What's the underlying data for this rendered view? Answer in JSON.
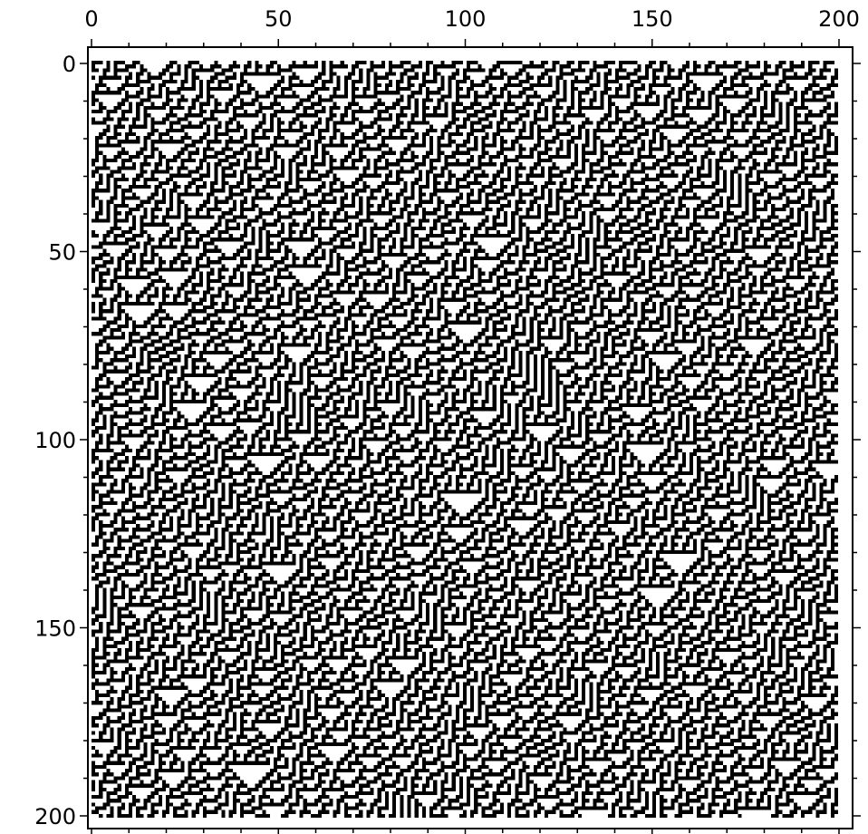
{
  "chart_data": {
    "type": "heatmap",
    "title": "",
    "xlabel": "",
    "ylabel": "",
    "xlim": [
      0,
      200
    ],
    "ylim": [
      200,
      0
    ],
    "x_ticks": [
      0,
      50,
      100,
      150,
      200
    ],
    "y_ticks": [
      0,
      50,
      100,
      150,
      200
    ],
    "x_tick_labels": [
      "0",
      "50",
      "100",
      "150",
      "200"
    ],
    "y_tick_labels": [
      "0",
      "50",
      "100",
      "150",
      "200"
    ],
    "x_axis_position": "top",
    "y_axis_position": "left",
    "grid": false,
    "colormap": {
      "0": "#ffffff",
      "1": "#000000"
    },
    "rows": 201,
    "cols": 201,
    "pattern": "elementary cellular automaton (Rule 30) evolution: black and white cells with nested white triangles"
  }
}
